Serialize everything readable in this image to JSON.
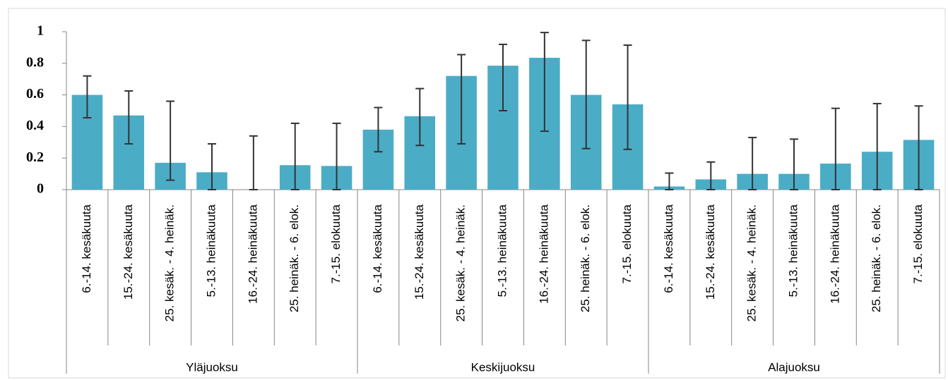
{
  "chart_data": {
    "type": "bar",
    "color": "#4bacc6",
    "error_color": "#333333",
    "groups": [
      {
        "label": "Yläjuoksu",
        "categories": [
          "6.-14. kesäkuuta",
          "15.-24. kesäkuuta",
          "25. kesäk. - 4. heinäk.",
          "5.-13. heinäkuuta",
          "16.-24. heinäkuuta",
          "25. heinäk. - 6. elok.",
          "7.-15. elokuuta"
        ]
      },
      {
        "label": "Keskijuoksu",
        "categories": [
          "6.-14. kesäkuuta",
          "15.-24. kesäkuuta",
          "25. kesäk. - 4. heinäk.",
          "5.-13. heinäkuuta",
          "16.-24. heinäkuuta",
          "25. heinäk. - 6. elok.",
          "7.-15. elokuuta"
        ]
      },
      {
        "label": "Alajuoksu",
        "categories": [
          "6.-14. kesäkuuta",
          "15.-24. kesäkuuta",
          "25. kesäk. - 4. heinäk.",
          "5.-13. heinäkuuta",
          "16.-24. heinäkuuta",
          "25. heinäk. - 6. elok.",
          "7.-15. elokuuta"
        ]
      }
    ],
    "values": [
      0.6,
      0.47,
      0.17,
      0.11,
      0,
      0.155,
      0.15,
      0.38,
      0.465,
      0.72,
      0.785,
      0.835,
      0.6,
      0.54,
      0.02,
      0.065,
      0.1,
      0.1,
      0.165,
      0.24,
      0.315
    ],
    "lower": [
      0.455,
      0.29,
      0.06,
      0,
      0,
      0,
      0,
      0.24,
      0.28,
      0.29,
      0.5,
      0.37,
      0.26,
      0.255,
      0,
      0,
      0,
      0,
      0,
      0,
      0
    ],
    "upper": [
      0.72,
      0.625,
      0.56,
      0.29,
      0.34,
      0.42,
      0.42,
      0.52,
      0.64,
      0.855,
      0.92,
      0.995,
      0.945,
      0.915,
      0.105,
      0.175,
      0.33,
      0.32,
      0.515,
      0.545,
      0.53
    ],
    "ylim": [
      0,
      1
    ],
    "yticks": [
      0,
      0.2,
      0.4,
      0.6,
      0.8,
      1
    ]
  }
}
